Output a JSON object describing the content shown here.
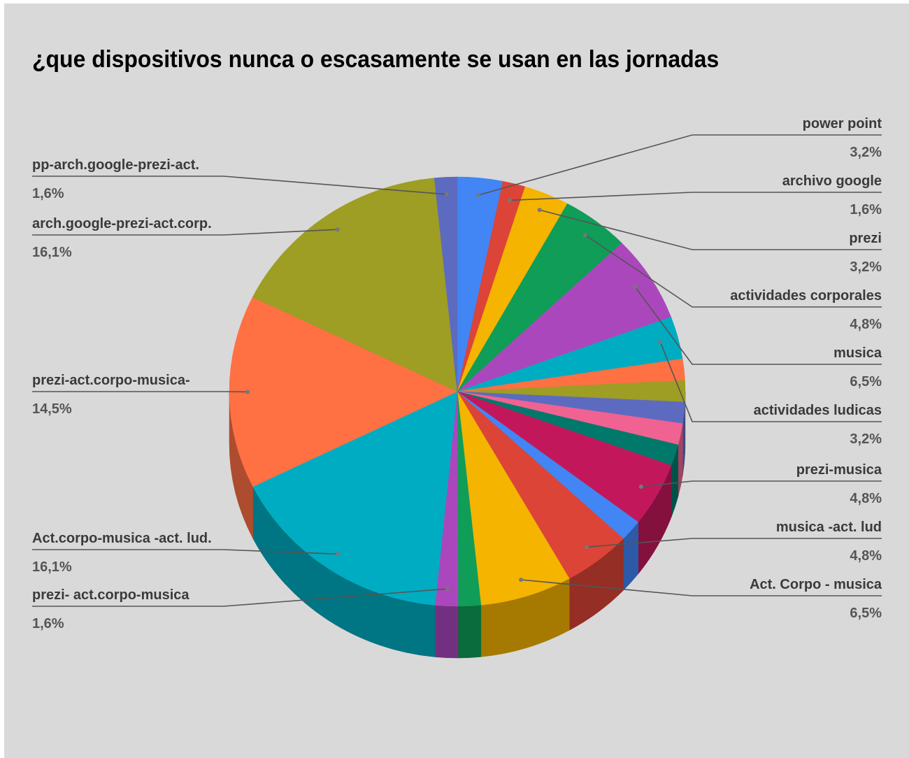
{
  "chart_data": {
    "type": "pie",
    "title": "¿que dispositivos nunca o escasamente se usan en las jornadas",
    "three_d": true,
    "slices": [
      {
        "label": "power point",
        "value": 3.2,
        "display": "3,2%",
        "color": "#4285f4",
        "shown": true
      },
      {
        "label": "archivo google",
        "value": 1.6,
        "display": "1,6%",
        "color": "#db4437",
        "shown": true
      },
      {
        "label": "prezi",
        "value": 3.2,
        "display": "3,2%",
        "color": "#f4b400",
        "shown": true
      },
      {
        "label": "actividades corporales",
        "value": 4.8,
        "display": "4,8%",
        "color": "#0f9d58",
        "shown": true
      },
      {
        "label": "musica",
        "value": 6.5,
        "display": "6,5%",
        "color": "#ab47bc",
        "shown": true
      },
      {
        "label": "actividades ludicas",
        "value": 3.2,
        "display": "3,2%",
        "color": "#00acc1",
        "shown": true
      },
      {
        "label": "",
        "value": 1.6,
        "display": "",
        "color": "#ff7043",
        "shown": false
      },
      {
        "label": "",
        "value": 1.6,
        "display": "",
        "color": "#9e9d24",
        "shown": false
      },
      {
        "label": "",
        "value": 1.6,
        "display": "",
        "color": "#5c6bc0",
        "shown": false
      },
      {
        "label": "",
        "value": 1.6,
        "display": "",
        "color": "#f06292",
        "shown": false
      },
      {
        "label": "",
        "value": 1.6,
        "display": "",
        "color": "#00796b",
        "shown": false
      },
      {
        "label": "prezi-musica",
        "value": 4.8,
        "display": "4,8%",
        "color": "#c2185b",
        "shown": true
      },
      {
        "label": "",
        "value": 1.6,
        "display": "",
        "color": "#4285f4",
        "shown": false
      },
      {
        "label": "musica -act. lud",
        "value": 4.8,
        "display": "4,8%",
        "color": "#db4437",
        "shown": true
      },
      {
        "label": "Act. Corpo - musica",
        "value": 6.5,
        "display": "6,5%",
        "color": "#f4b400",
        "shown": true
      },
      {
        "label": "",
        "value": 1.6,
        "display": "",
        "color": "#0f9d58",
        "shown": false
      },
      {
        "label": "prezi- act.corpo-musica",
        "value": 1.6,
        "display": "1,6%",
        "color": "#ab47bc",
        "shown": true
      },
      {
        "label": "Act.corpo-musica -act. lud.",
        "value": 16.1,
        "display": "16,1%",
        "color": "#00acc1",
        "shown": true
      },
      {
        "label": "prezi-act.corpo-musica-",
        "value": 14.5,
        "display": "14,5%",
        "color": "#ff7043",
        "shown": true
      },
      {
        "label": "arch.google-prezi-act.corp.",
        "value": 16.1,
        "display": "16,1%",
        "color": "#9e9d24",
        "shown": true
      },
      {
        "label": "pp-arch.google-prezi-act.",
        "value": 1.6,
        "display": "1,6%",
        "color": "#5c6bc0",
        "shown": true
      }
    ]
  }
}
